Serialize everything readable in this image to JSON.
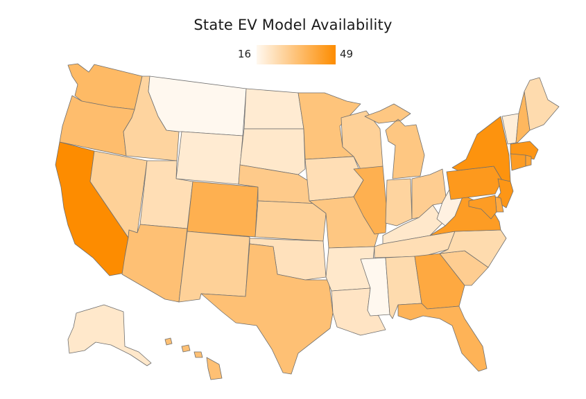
{
  "title": "State EV Model Availability",
  "legend": {
    "min_label": "16",
    "max_label": "49",
    "min": 16,
    "max": 49,
    "color_low": "#fff8ef",
    "color_high": "#fd8c00"
  },
  "chart_data": {
    "type": "choropleth",
    "title": "State EV Model Availability",
    "value_range": [
      16,
      49
    ],
    "colors": {
      "low": "#fff8ef",
      "high": "#fd8c00",
      "stroke": "#6e6e6e"
    },
    "states": [
      {
        "code": "WA",
        "value": 35
      },
      {
        "code": "OR",
        "value": 34
      },
      {
        "code": "CA",
        "value": 49
      },
      {
        "code": "ID",
        "value": 27
      },
      {
        "code": "NV",
        "value": 28
      },
      {
        "code": "MT",
        "value": 16
      },
      {
        "code": "WY",
        "value": 20
      },
      {
        "code": "UT",
        "value": 24
      },
      {
        "code": "AZ",
        "value": 33
      },
      {
        "code": "CO",
        "value": 38
      },
      {
        "code": "NM",
        "value": 28
      },
      {
        "code": "ND",
        "value": 20
      },
      {
        "code": "SD",
        "value": 21
      },
      {
        "code": "NE",
        "value": 30
      },
      {
        "code": "KS",
        "value": 28
      },
      {
        "code": "OK",
        "value": 23
      },
      {
        "code": "TX",
        "value": 33
      },
      {
        "code": "MN",
        "value": 32
      },
      {
        "code": "IA",
        "value": 24
      },
      {
        "code": "MO",
        "value": 31
      },
      {
        "code": "AR",
        "value": 21
      },
      {
        "code": "LA",
        "value": 22
      },
      {
        "code": "WI",
        "value": 28
      },
      {
        "code": "IL",
        "value": 38
      },
      {
        "code": "MS",
        "value": 16
      },
      {
        "code": "MI",
        "value": 31
      },
      {
        "code": "IN",
        "value": 27
      },
      {
        "code": "KY",
        "value": 21
      },
      {
        "code": "TN",
        "value": 24
      },
      {
        "code": "AL",
        "value": 25
      },
      {
        "code": "OH",
        "value": 29
      },
      {
        "code": "WV",
        "value": 18
      },
      {
        "code": "GA",
        "value": 40
      },
      {
        "code": "FL",
        "value": 37
      },
      {
        "code": "SC",
        "value": 29
      },
      {
        "code": "NC",
        "value": 25
      },
      {
        "code": "VA",
        "value": 44
      },
      {
        "code": "PA",
        "value": 45
      },
      {
        "code": "NY",
        "value": 47
      },
      {
        "code": "VT",
        "value": 19
      },
      {
        "code": "NH",
        "value": 36
      },
      {
        "code": "ME",
        "value": 25
      },
      {
        "code": "MA",
        "value": 46
      },
      {
        "code": "CT",
        "value": 44
      },
      {
        "code": "RI",
        "value": 42
      },
      {
        "code": "NJ",
        "value": 46
      },
      {
        "code": "DE",
        "value": 40
      },
      {
        "code": "MD",
        "value": 44
      },
      {
        "code": "AK",
        "value": 21
      },
      {
        "code": "HI",
        "value": 33
      }
    ]
  }
}
